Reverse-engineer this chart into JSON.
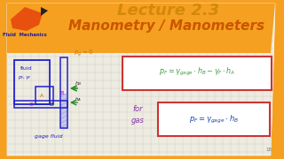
{
  "bg_color": "#f5a020",
  "whiteboard_color": "#eeebe0",
  "title1": "Lecture 2.3",
  "title2": "Manometry / Manometers",
  "title1_color": "#d4880a",
  "title2_color": "#cc5500",
  "logo_text": "Fluid  Mechanics",
  "logo_text_color": "#1a1aaa",
  "formula1_color": "#449944",
  "formula2_color": "#1a44aa",
  "for_gas_color": "#8833aa",
  "box_color": "#cc3333",
  "pg0_color": "#cc7700",
  "grid_color": "#bbbbbb",
  "sketch_color": "#2222cc",
  "arrow_color": "#228822",
  "hatch_color": "#9999ee"
}
